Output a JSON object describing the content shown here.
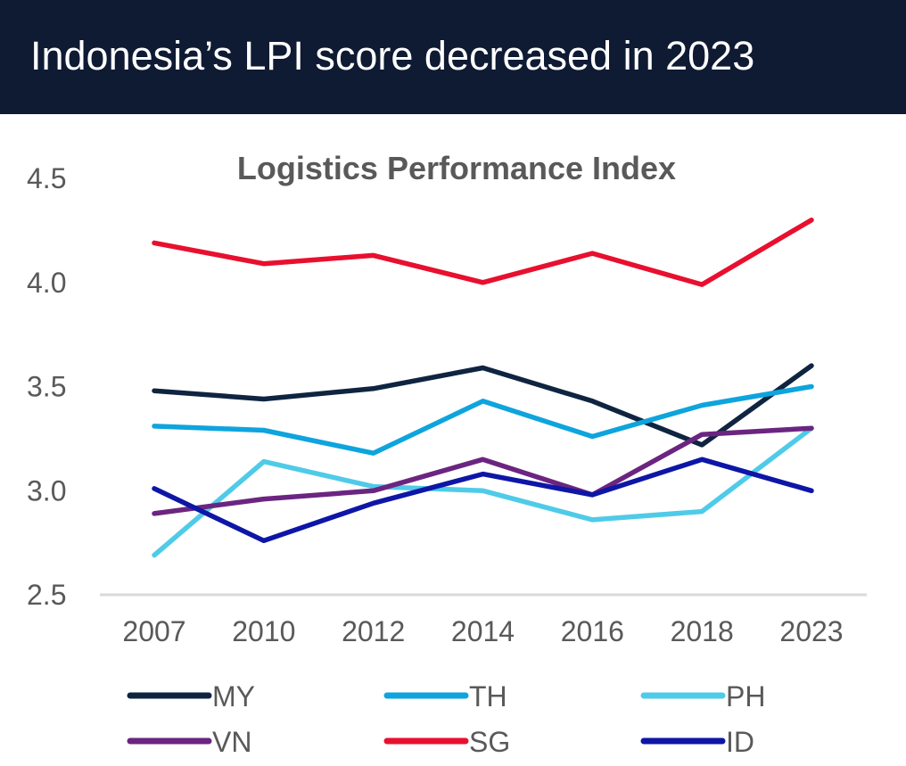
{
  "header": {
    "title": "Indonesia’s LPI score decreased in 2023"
  },
  "chart_data": {
    "type": "line",
    "title": "Logistics Performance Index",
    "xlabel": "",
    "ylabel": "",
    "categories": [
      "2007",
      "2010",
      "2012",
      "2014",
      "2016",
      "2018",
      "2023"
    ],
    "ylim": [
      2.5,
      4.5
    ],
    "yticks": [
      "2.5",
      "3.0",
      "3.5",
      "4.0",
      "4.5"
    ],
    "grid": false,
    "legend_position": "bottom",
    "series": [
      {
        "name": "MY",
        "color": "#0f2440",
        "values": [
          3.48,
          3.44,
          3.49,
          3.59,
          3.43,
          3.22,
          3.6
        ]
      },
      {
        "name": "TH",
        "color": "#0ea4dd",
        "values": [
          3.31,
          3.29,
          3.18,
          3.43,
          3.26,
          3.41,
          3.5
        ]
      },
      {
        "name": "PH",
        "color": "#4fcbe8",
        "values": [
          2.69,
          3.14,
          3.02,
          3.0,
          2.86,
          2.9,
          3.3
        ]
      },
      {
        "name": "VN",
        "color": "#6b2580",
        "values": [
          2.89,
          2.96,
          3.0,
          3.15,
          2.98,
          3.27,
          3.3
        ]
      },
      {
        "name": "SG",
        "color": "#e8102e",
        "values": [
          4.19,
          4.09,
          4.13,
          4.0,
          4.14,
          3.99,
          4.3
        ]
      },
      {
        "name": "ID",
        "color": "#0d16a6",
        "values": [
          3.01,
          2.76,
          2.94,
          3.08,
          2.98,
          3.15,
          3.0
        ]
      }
    ]
  }
}
